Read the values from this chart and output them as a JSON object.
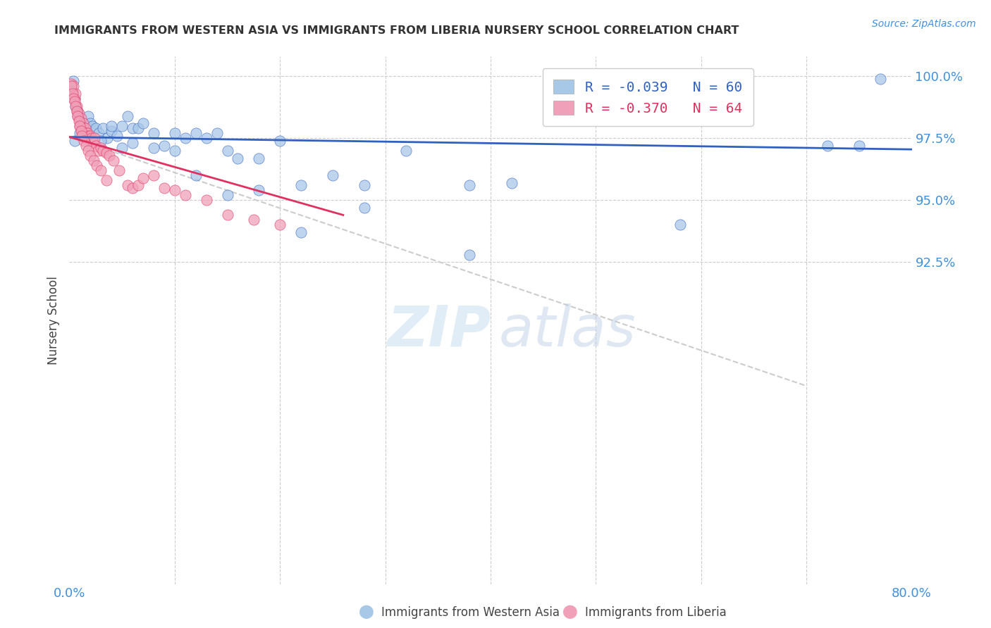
{
  "title": "IMMIGRANTS FROM WESTERN ASIA VS IMMIGRANTS FROM LIBERIA NURSERY SCHOOL CORRELATION CHART",
  "source": "Source: ZipAtlas.com",
  "xlabel_blue": "Immigrants from Western Asia",
  "xlabel_pink": "Immigrants from Liberia",
  "ylabel": "Nursery School",
  "xmin": 0.0,
  "xmax": 0.8,
  "ymin": 0.795,
  "ymax": 1.008,
  "blue_color": "#a8c8e8",
  "pink_color": "#f0a0b8",
  "trendline_blue_color": "#3060c0",
  "trendline_pink_color": "#e03060",
  "trendline_gray_color": "#cccccc",
  "background_color": "#ffffff",
  "title_color": "#333333",
  "axis_color": "#4090e0",
  "legend_blue_R": "R = -0.039",
  "legend_blue_N": "N = 60",
  "legend_pink_R": "R = -0.370",
  "legend_pink_N": "N = 64",
  "blue_trend_x": [
    0.0,
    0.8
  ],
  "blue_trend_y": [
    0.9755,
    0.9705
  ],
  "pink_trend_x": [
    0.0,
    0.26
  ],
  "pink_trend_y": [
    0.9755,
    0.944
  ],
  "gray_trend_x": [
    0.0,
    0.7
  ],
  "gray_trend_y": [
    0.9755,
    0.875
  ],
  "blue_points_x": [
    0.002,
    0.004,
    0.005,
    0.006,
    0.008,
    0.01,
    0.012,
    0.014,
    0.016,
    0.018,
    0.02,
    0.022,
    0.025,
    0.028,
    0.032,
    0.036,
    0.04,
    0.045,
    0.05,
    0.055,
    0.06,
    0.065,
    0.07,
    0.08,
    0.09,
    0.1,
    0.11,
    0.12,
    0.13,
    0.14,
    0.15,
    0.16,
    0.18,
    0.2,
    0.22,
    0.25,
    0.28,
    0.32,
    0.38,
    0.42,
    0.58,
    0.005,
    0.01,
    0.015,
    0.02,
    0.03,
    0.04,
    0.05,
    0.06,
    0.08,
    0.1,
    0.12,
    0.15,
    0.18,
    0.22,
    0.28,
    0.38,
    0.72,
    0.75,
    0.77
  ],
  "blue_points_y": [
    0.994,
    0.998,
    0.991,
    0.988,
    0.986,
    0.983,
    0.98,
    0.98,
    0.976,
    0.984,
    0.981,
    0.98,
    0.979,
    0.977,
    0.979,
    0.975,
    0.978,
    0.976,
    0.98,
    0.984,
    0.979,
    0.979,
    0.981,
    0.977,
    0.972,
    0.977,
    0.975,
    0.977,
    0.975,
    0.977,
    0.97,
    0.967,
    0.967,
    0.974,
    0.956,
    0.96,
    0.956,
    0.97,
    0.956,
    0.957,
    0.94,
    0.974,
    0.977,
    0.975,
    0.974,
    0.974,
    0.98,
    0.971,
    0.973,
    0.971,
    0.97,
    0.96,
    0.952,
    0.954,
    0.937,
    0.947,
    0.928,
    0.972,
    0.972,
    0.999
  ],
  "pink_points_x": [
    0.002,
    0.003,
    0.004,
    0.005,
    0.006,
    0.007,
    0.007,
    0.008,
    0.009,
    0.01,
    0.01,
    0.011,
    0.012,
    0.013,
    0.014,
    0.015,
    0.016,
    0.017,
    0.018,
    0.019,
    0.02,
    0.021,
    0.022,
    0.023,
    0.024,
    0.025,
    0.027,
    0.03,
    0.032,
    0.035,
    0.038,
    0.042,
    0.047,
    0.055,
    0.06,
    0.065,
    0.07,
    0.08,
    0.09,
    0.1,
    0.11,
    0.13,
    0.15,
    0.175,
    0.2,
    0.002,
    0.003,
    0.004,
    0.005,
    0.006,
    0.007,
    0.008,
    0.009,
    0.01,
    0.011,
    0.012,
    0.014,
    0.016,
    0.018,
    0.02,
    0.023,
    0.026,
    0.03,
    0.035
  ],
  "pink_points_y": [
    0.997,
    0.994,
    0.996,
    0.991,
    0.993,
    0.988,
    0.986,
    0.984,
    0.985,
    0.982,
    0.98,
    0.983,
    0.978,
    0.981,
    0.979,
    0.979,
    0.977,
    0.977,
    0.976,
    0.975,
    0.976,
    0.975,
    0.974,
    0.973,
    0.975,
    0.972,
    0.97,
    0.971,
    0.97,
    0.969,
    0.968,
    0.966,
    0.962,
    0.956,
    0.955,
    0.956,
    0.959,
    0.96,
    0.955,
    0.954,
    0.952,
    0.95,
    0.944,
    0.942,
    0.94,
    0.996,
    0.993,
    0.991,
    0.99,
    0.988,
    0.986,
    0.984,
    0.982,
    0.98,
    0.978,
    0.976,
    0.974,
    0.972,
    0.97,
    0.968,
    0.966,
    0.964,
    0.962,
    0.958
  ]
}
